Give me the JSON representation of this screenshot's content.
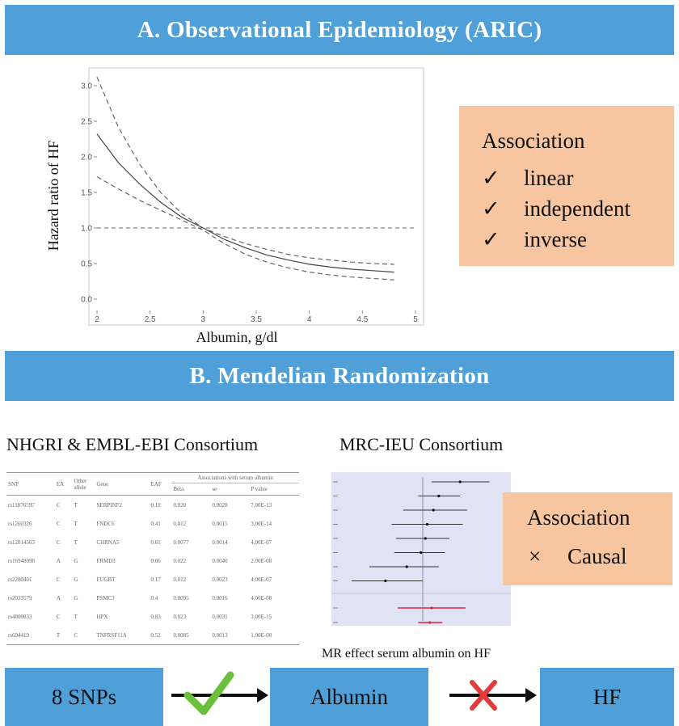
{
  "section_a": {
    "title": "A. Observational Epidemiology (ARIC)"
  },
  "section_b": {
    "title": "B. Mendelian Randomization"
  },
  "chart_data": {
    "type": "line",
    "xlabel": "Albumin, g/dl",
    "ylabel": "Hazard ratio of HF",
    "xlim": [
      2,
      5
    ],
    "ylim": [
      0,
      3
    ],
    "x_ticks": [
      "2",
      "2.5",
      "3",
      "3.5",
      "4",
      "4.5",
      "5"
    ],
    "y_ticks": [
      "0.0",
      "0.5",
      "1.0",
      "1.5",
      "2.0",
      "2.5",
      "3.0"
    ],
    "reference_line": 1.0,
    "series": [
      {
        "style": "solid",
        "x": [
          2.0,
          2.2,
          2.4,
          2.6,
          2.8,
          3.0,
          3.2,
          3.4,
          3.6,
          3.8,
          4.0,
          4.2,
          4.4,
          4.6,
          4.8
        ],
        "values": [
          2.32,
          1.92,
          1.62,
          1.36,
          1.15,
          1.0,
          0.84,
          0.72,
          0.62,
          0.55,
          0.49,
          0.45,
          0.42,
          0.4,
          0.38
        ]
      },
      {
        "style": "dashed",
        "x": [
          2.0,
          2.2,
          2.4,
          2.6,
          2.8,
          3.0,
          3.2,
          3.4,
          3.6,
          3.8,
          4.0,
          4.2,
          4.4,
          4.6,
          4.8
        ],
        "values": [
          3.12,
          2.42,
          1.9,
          1.5,
          1.2,
          1.0,
          0.88,
          0.78,
          0.7,
          0.63,
          0.58,
          0.55,
          0.52,
          0.5,
          0.49
        ]
      },
      {
        "style": "dashed",
        "x": [
          2.0,
          2.2,
          2.4,
          2.6,
          2.8,
          3.0,
          3.2,
          3.4,
          3.6,
          3.8,
          4.0,
          4.2,
          4.4,
          4.6,
          4.8
        ],
        "values": [
          1.72,
          1.55,
          1.39,
          1.25,
          1.11,
          0.97,
          0.78,
          0.63,
          0.52,
          0.44,
          0.38,
          0.34,
          0.31,
          0.29,
          0.27
        ]
      }
    ]
  },
  "association_a": {
    "title": "Association",
    "check_mark": "✓",
    "items": [
      "linear",
      "independent",
      "inverse"
    ]
  },
  "nhgri_title": "NHGRI & EMBL-EBI Consortium",
  "mrc_title": "MRC-IEU Consortium",
  "snp_table": {
    "headers": [
      "SNP",
      "EA",
      "Other allele",
      "Gene",
      "EAF",
      "Associations with serum albumin",
      "Beta",
      "se",
      "P value"
    ],
    "rows": [
      [
        "rs11876597",
        "C",
        "T",
        "SERPINF2",
        "0.18",
        "0.020",
        "0.0028",
        "7.00E-13"
      ],
      [
        "rs1260326",
        "C",
        "T",
        "FNDC6",
        "0.41",
        "0.012",
        "0.0015",
        "3.00E-14"
      ],
      [
        "rs12814503",
        "C",
        "T",
        "CHRNA5",
        "0.61",
        "0.0077",
        "0.0014",
        "4.00E-07"
      ],
      [
        "rs16948098",
        "A",
        "G",
        "FRMD3",
        "0.06",
        "0.022",
        "0.0040",
        "2.00E-08"
      ],
      [
        "rs2280401",
        "C",
        "G",
        "FUGBT",
        "0.17",
        "0.012",
        "0.0023",
        "4.00E-07"
      ],
      [
        "rs2033579",
        "A",
        "G",
        "PSMC3",
        "0.4",
        "0.0095",
        "0.0016",
        "4.00E-08"
      ],
      [
        "rs4800833",
        "C",
        "T",
        "HPX",
        "0.83",
        "0.023",
        "0.0031",
        "3.00E-15"
      ],
      [
        "rs694419",
        "T",
        "C",
        "TNFRSF11A",
        "0.52",
        "0.0085",
        "0.0013",
        "1.00E-08"
      ]
    ]
  },
  "mr_forest": {
    "snp_estimates": [
      {
        "estimate": 0.42,
        "low": 0.1,
        "high": 0.75
      },
      {
        "estimate": 0.18,
        "low": -0.05,
        "high": 0.42
      },
      {
        "estimate": 0.12,
        "low": -0.22,
        "high": 0.5
      },
      {
        "estimate": 0.05,
        "low": -0.35,
        "high": 0.45
      },
      {
        "estimate": 0.03,
        "low": -0.3,
        "high": 0.3
      },
      {
        "estimate": -0.02,
        "low": -0.32,
        "high": 0.25
      },
      {
        "estimate": -0.18,
        "low": -0.6,
        "high": 0.18
      },
      {
        "estimate": -0.42,
        "low": -0.8,
        "high": 0.0
      }
    ],
    "pooled_estimates": [
      {
        "estimate": 0.1,
        "low": -0.28,
        "high": 0.48
      },
      {
        "estimate": 0.08,
        "low": -0.05,
        "high": 0.22
      }
    ],
    "x_range": [
      -0.9,
      0.9
    ],
    "pooled_color": "#d8263c"
  },
  "mr_caption": "MR effect serum albumin on HF",
  "association_b": {
    "title": "Association",
    "cross_mark": "×",
    "items": [
      "Causal"
    ]
  },
  "flow": {
    "snps": "8 SNPs",
    "albumin": "Albumin",
    "hf": "HF",
    "check_color": "#6cbf3c",
    "cross_color": "#e23b3b"
  },
  "colors": {
    "banner": "#4f9fd8",
    "association_box": "#f7c59f",
    "mr_panel": "#dfe3f4"
  }
}
